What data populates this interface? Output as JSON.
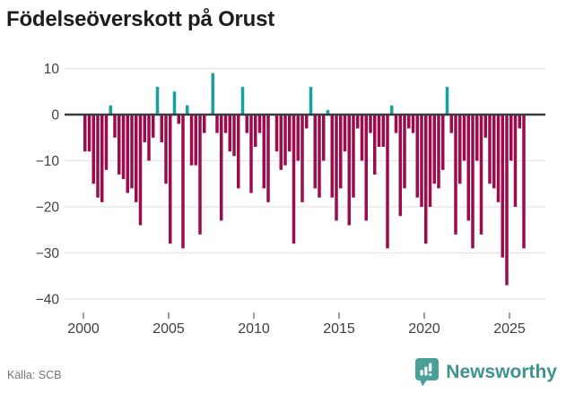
{
  "header": {
    "title": "Födelseöverskott på Orust"
  },
  "footer": {
    "source": "Källa: SCB",
    "brand": "Newsworthy"
  },
  "chart_data": {
    "type": "bar",
    "title": "Födelseöverskott på Orust",
    "xlabel": "",
    "ylabel": "",
    "ylim": [
      -40,
      10
    ],
    "grid": true,
    "legend": false,
    "colors": {
      "negative": "#9c0c4c",
      "positive": "#13a29c"
    },
    "x_ticks": [
      2000,
      2005,
      2010,
      2015,
      2020,
      2025
    ],
    "y_ticks": [
      {
        "v": 10,
        "label": "10"
      },
      {
        "v": 0,
        "label": "0"
      },
      {
        "v": -10,
        "label": "−10"
      },
      {
        "v": -20,
        "label": "−20"
      },
      {
        "v": -30,
        "label": "−30"
      },
      {
        "v": -40,
        "label": "−40"
      }
    ],
    "categories": [
      "2000Q1",
      "2000Q2",
      "2000Q3",
      "2000Q4",
      "2001Q1",
      "2001Q2",
      "2001Q3",
      "2001Q4",
      "2002Q1",
      "2002Q2",
      "2002Q3",
      "2002Q4",
      "2003Q1",
      "2003Q2",
      "2003Q3",
      "2003Q4",
      "2004Q1",
      "2004Q2",
      "2004Q3",
      "2004Q4",
      "2005Q1",
      "2005Q2",
      "2005Q3",
      "2005Q4",
      "2006Q1",
      "2006Q2",
      "2006Q3",
      "2006Q4",
      "2007Q1",
      "2007Q2",
      "2007Q3",
      "2007Q4",
      "2008Q1",
      "2008Q2",
      "2008Q3",
      "2008Q4",
      "2009Q1",
      "2009Q2",
      "2009Q3",
      "2009Q4",
      "2010Q1",
      "2010Q2",
      "2010Q3",
      "2010Q4",
      "2011Q1",
      "2011Q2",
      "2011Q3",
      "2011Q4",
      "2012Q1",
      "2012Q2",
      "2012Q3",
      "2012Q4",
      "2013Q1",
      "2013Q2",
      "2013Q3",
      "2013Q4",
      "2014Q1",
      "2014Q2",
      "2014Q3",
      "2014Q4",
      "2015Q1",
      "2015Q2",
      "2015Q3",
      "2015Q4",
      "2016Q1",
      "2016Q2",
      "2016Q3",
      "2016Q4",
      "2017Q1",
      "2017Q2",
      "2017Q3",
      "2017Q4",
      "2018Q1",
      "2018Q2",
      "2018Q3",
      "2018Q4",
      "2019Q1",
      "2019Q2",
      "2019Q3",
      "2019Q4",
      "2020Q1",
      "2020Q2",
      "2020Q3",
      "2020Q4",
      "2021Q1",
      "2021Q2",
      "2021Q3",
      "2021Q4",
      "2022Q1",
      "2022Q2",
      "2022Q3",
      "2022Q4",
      "2023Q1",
      "2023Q2",
      "2023Q3",
      "2023Q4",
      "2024Q1",
      "2024Q2",
      "2024Q3",
      "2024Q4",
      "2025Q1",
      "2025Q2",
      "2025Q3",
      "2025Q4"
    ],
    "values": [
      -8,
      -8,
      -15,
      -18,
      -19,
      -12,
      2,
      -5,
      -13,
      -14,
      -17,
      -16,
      -19,
      -24,
      -6,
      -10,
      -5,
      6,
      -6,
      -15,
      -28,
      5,
      -2,
      -29,
      2,
      -11,
      -11,
      -26,
      -4,
      0,
      9,
      -4,
      -23,
      -4,
      -8,
      -9,
      -16,
      6,
      -4,
      -17,
      -7,
      -4,
      -16,
      -19,
      0,
      -8,
      -12,
      -11,
      -8,
      -28,
      -10,
      -19,
      -3,
      6,
      -16,
      -18,
      -10,
      1,
      -18,
      -23,
      -16,
      -8,
      -24,
      -18,
      -3,
      -10,
      -23,
      -4,
      -13,
      -7,
      -7,
      -29,
      2,
      -4,
      -22,
      -16,
      -3,
      -4,
      -18,
      -20,
      -28,
      -20,
      -15,
      -16,
      -12,
      6,
      -4,
      -26,
      -15,
      -10,
      -23,
      -29,
      -10,
      -26,
      -5,
      -15,
      -16,
      -19,
      -31,
      -37,
      -10,
      -20,
      -3,
      -29
    ]
  }
}
